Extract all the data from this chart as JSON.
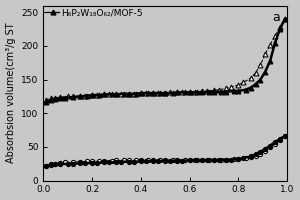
{
  "title_label": "a",
  "ylabel": "Absorbsion volume(cm³/g ST",
  "legend_label": "H₆P₂W₁₈O₆₂/MOF-5",
  "xlim": [
    0.0,
    1.0
  ],
  "ylim": [
    0,
    260
  ],
  "yticks": [
    0,
    50,
    100,
    150,
    200,
    250
  ],
  "xticks": [
    0.0,
    0.2,
    0.4,
    0.6,
    0.8,
    1.0
  ],
  "mof5_adsorption_x": [
    0.01,
    0.03,
    0.05,
    0.07,
    0.09,
    0.12,
    0.15,
    0.18,
    0.2,
    0.23,
    0.25,
    0.28,
    0.3,
    0.33,
    0.35,
    0.38,
    0.4,
    0.43,
    0.45,
    0.48,
    0.5,
    0.53,
    0.55,
    0.58,
    0.6,
    0.63,
    0.65,
    0.68,
    0.7,
    0.73,
    0.75,
    0.78,
    0.8,
    0.83,
    0.85,
    0.87,
    0.89,
    0.91,
    0.93,
    0.95,
    0.97,
    0.99
  ],
  "mof5_adsorption_y": [
    22,
    24,
    25,
    26,
    27,
    27.5,
    28,
    28.5,
    29,
    29,
    29.5,
    29.5,
    30,
    30,
    30,
    30,
    30,
    30,
    30,
    30,
    30,
    30,
    30.5,
    30.5,
    30.5,
    31,
    31,
    31,
    31,
    31,
    31,
    31.5,
    32,
    33,
    35,
    37,
    40,
    44,
    50,
    55,
    60,
    66
  ],
  "mof5_desorption_x": [
    0.99,
    0.97,
    0.95,
    0.93,
    0.91,
    0.89,
    0.87,
    0.85,
    0.82,
    0.8,
    0.77,
    0.75,
    0.72,
    0.7,
    0.67,
    0.65,
    0.62,
    0.6,
    0.57,
    0.55,
    0.52,
    0.5,
    0.47,
    0.45,
    0.42,
    0.4,
    0.37,
    0.35,
    0.32,
    0.3,
    0.27,
    0.25,
    0.22,
    0.2,
    0.17,
    0.15,
    0.12,
    0.1,
    0.07,
    0.05,
    0.03,
    0.01
  ],
  "mof5_desorption_y": [
    66,
    62,
    57,
    52,
    47,
    43,
    39,
    36,
    33,
    32,
    31,
    31,
    30.5,
    30.5,
    30,
    30,
    30,
    30,
    29.5,
    29.5,
    29.5,
    29,
    29,
    29,
    28.5,
    28.5,
    28,
    28,
    28,
    27.5,
    27,
    27,
    26.5,
    26,
    26,
    25.5,
    25,
    25,
    24.5,
    24,
    23.5,
    22
  ],
  "composite_adsorption_x": [
    0.01,
    0.03,
    0.05,
    0.07,
    0.09,
    0.12,
    0.15,
    0.18,
    0.2,
    0.23,
    0.25,
    0.28,
    0.3,
    0.33,
    0.35,
    0.38,
    0.4,
    0.43,
    0.45,
    0.48,
    0.5,
    0.53,
    0.55,
    0.58,
    0.6,
    0.63,
    0.65,
    0.68,
    0.7,
    0.73,
    0.75,
    0.78,
    0.8,
    0.83,
    0.85,
    0.87,
    0.89,
    0.91,
    0.93,
    0.95,
    0.97,
    0.99
  ],
  "composite_adsorption_y": [
    116,
    119,
    121,
    122,
    123,
    124,
    125,
    126,
    127,
    127,
    128,
    128,
    128,
    129,
    129,
    129,
    130,
    130,
    130,
    130,
    130,
    130,
    131,
    131,
    131,
    131,
    131,
    132,
    132,
    132,
    132,
    133,
    133,
    135,
    138,
    143,
    150,
    162,
    178,
    205,
    225,
    240
  ],
  "composite_desorption_x": [
    0.99,
    0.97,
    0.95,
    0.93,
    0.91,
    0.89,
    0.87,
    0.85,
    0.82,
    0.8,
    0.77,
    0.75,
    0.72,
    0.7,
    0.67,
    0.65,
    0.62,
    0.6,
    0.57,
    0.55,
    0.52,
    0.5,
    0.47,
    0.45,
    0.42,
    0.4,
    0.37,
    0.35,
    0.32,
    0.3,
    0.27,
    0.25,
    0.22,
    0.2,
    0.17,
    0.15,
    0.12,
    0.1,
    0.07,
    0.05,
    0.03,
    0.01
  ],
  "composite_desorption_y": [
    240,
    228,
    215,
    202,
    188,
    172,
    160,
    152,
    146,
    142,
    139,
    137,
    135,
    134,
    133,
    133,
    132,
    132,
    131,
    131,
    131,
    130,
    130,
    130,
    130,
    130,
    129,
    129,
    129,
    129,
    128,
    128,
    127,
    127,
    126,
    126,
    125,
    125,
    124,
    123,
    122,
    120
  ],
  "bg_color": "#c8c8c8",
  "line_color": "#000000",
  "fontsize_label": 7,
  "fontsize_tick": 6.5,
  "fontsize_legend": 6.5,
  "fontsize_annot": 9
}
